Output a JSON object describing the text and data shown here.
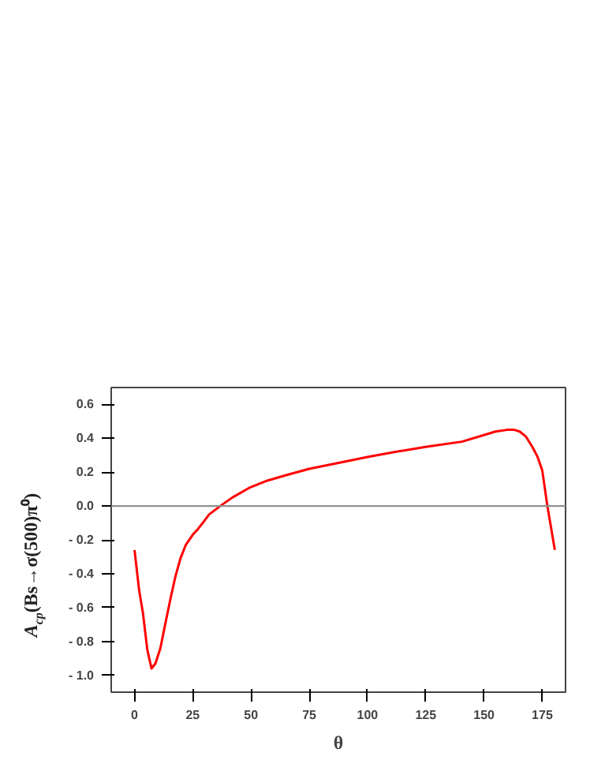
{
  "chart_data": {
    "type": "line",
    "xlabel": "θ",
    "ylabel": "A$_{cp}$(Bs→σ(500)π⁰)",
    "series": [
      {
        "color": "#ff0000",
        "x": [
          0,
          2,
          3.6,
          5.5,
          7.3,
          9,
          11.1,
          13,
          15.4,
          17.5,
          19.7,
          22,
          25,
          27,
          29.3,
          32,
          36.8,
          42,
          49.6,
          57,
          64.5,
          75,
          85.9,
          100,
          112,
          125.4,
          140.5,
          150.2,
          155,
          159.9,
          163,
          165.3,
          168,
          170.7,
          173,
          175,
          177.2,
          180.4
        ],
        "values": [
          -0.26,
          -0.5,
          -0.63,
          -0.85,
          -0.96,
          -0.93,
          -0.84,
          -0.71,
          -0.55,
          -0.42,
          -0.31,
          -0.23,
          -0.17,
          -0.14,
          -0.1,
          -0.05,
          0.0,
          0.05,
          0.11,
          0.15,
          0.18,
          0.22,
          0.25,
          0.29,
          0.32,
          0.35,
          0.38,
          0.42,
          0.44,
          0.45,
          0.45,
          0.44,
          0.41,
          0.35,
          0.29,
          0.21,
          0.0,
          -0.26
        ]
      }
    ],
    "xlim": [
      -10,
      185
    ],
    "ylim": [
      -1.1,
      0.7
    ],
    "xticks": [
      0,
      25,
      50,
      75,
      100,
      125,
      150,
      175
    ],
    "yticks": [
      {
        "value": 0.6,
        "label": "0.6"
      },
      {
        "value": 0.4,
        "label": "0.4"
      },
      {
        "value": 0.2,
        "label": "0.2"
      },
      {
        "value": 0.0,
        "label": "0.0"
      },
      {
        "value": -0.2,
        "label": "- 0.2"
      },
      {
        "value": -0.4,
        "label": "- 0.4"
      },
      {
        "value": -0.6,
        "label": "- 0.6"
      },
      {
        "value": -0.8,
        "label": "- 0.8"
      },
      {
        "value": -1.0,
        "label": "- 1.0"
      }
    ],
    "ref_lines": [
      {
        "axis": "y",
        "value": 0.0,
        "label": null,
        "color": "#909090"
      }
    ],
    "grid": false,
    "marker": "none",
    "line_style": "solid"
  }
}
